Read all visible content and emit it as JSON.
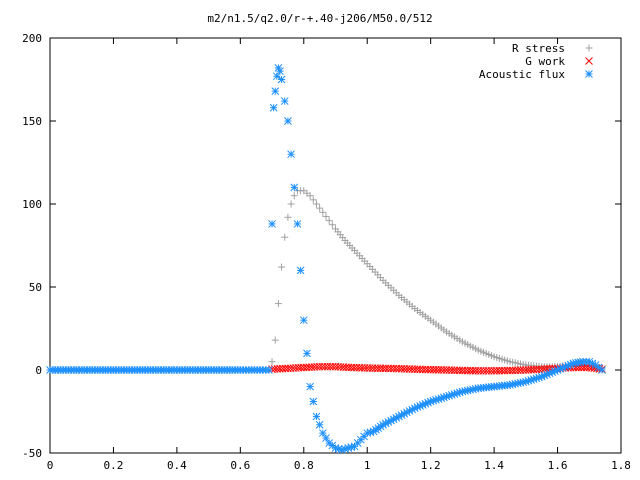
{
  "chart_data": {
    "type": "scatter",
    "title": "m2/n1.5/q2.0/r-+.40-j206/M50.0/512",
    "xlabel": "",
    "ylabel": "",
    "xlim": [
      0,
      1.8
    ],
    "ylim": [
      -50,
      200
    ],
    "grid": false,
    "legend_position": "top-right",
    "x_ticks": [
      "0",
      "0.2",
      "0.4",
      "0.6",
      "0.8",
      "1",
      "1.2",
      "1.4",
      "1.6",
      "1.8"
    ],
    "y_ticks": [
      "-50",
      "0",
      "50",
      "100",
      "150",
      "200"
    ],
    "series": [
      {
        "name": "R stress",
        "marker": "plus",
        "color": "#a0a0a0",
        "x": [
          0.7,
          0.71,
          0.72,
          0.73,
          0.74,
          0.75,
          0.76,
          0.77,
          0.78,
          0.8,
          0.82,
          0.84,
          0.86,
          0.88,
          0.9,
          0.93,
          0.96,
          1.0,
          1.05,
          1.1,
          1.15,
          1.2,
          1.25,
          1.3,
          1.35,
          1.4,
          1.45,
          1.5,
          1.55,
          1.6,
          1.65,
          1.7,
          1.74
        ],
        "y": [
          5,
          18,
          40,
          62,
          80,
          92,
          100,
          105,
          108,
          108,
          105,
          100,
          95,
          90,
          85,
          78,
          72,
          64,
          54,
          45,
          37,
          30,
          23,
          17,
          12,
          8,
          5,
          3,
          2,
          2,
          3,
          3,
          1
        ]
      },
      {
        "name": "G work",
        "marker": "cross",
        "color": "#ff0000",
        "x": [
          0.7,
          0.75,
          0.8,
          0.85,
          0.9,
          0.95,
          1.0,
          1.05,
          1.1,
          1.15,
          1.2,
          1.25,
          1.3,
          1.35,
          1.4,
          1.45,
          1.5,
          1.55,
          1.6,
          1.65,
          1.7,
          1.74
        ],
        "y": [
          0.5,
          1,
          1.5,
          2,
          2,
          1.5,
          1.2,
          1,
          0.8,
          0.5,
          0.2,
          0,
          -0.3,
          -0.5,
          -0.5,
          -0.3,
          0,
          0.5,
          1,
          1.5,
          1.5,
          0.5
        ]
      },
      {
        "name": "Acoustic flux",
        "marker": "star",
        "color": "#1e90ff",
        "x": [
          0.0,
          0.1,
          0.2,
          0.3,
          0.4,
          0.5,
          0.6,
          0.68,
          0.69,
          0.7,
          0.705,
          0.71,
          0.715,
          0.72,
          0.725,
          0.73,
          0.74,
          0.75,
          0.76,
          0.77,
          0.78,
          0.79,
          0.8,
          0.82,
          0.84,
          0.86,
          0.88,
          0.9,
          0.92,
          0.94,
          0.96,
          0.98,
          1.0,
          1.02,
          1.05,
          1.1,
          1.15,
          1.2,
          1.25,
          1.3,
          1.35,
          1.4,
          1.45,
          1.5,
          1.55,
          1.6,
          1.65,
          1.68,
          1.7,
          1.72,
          1.74
        ],
        "y": [
          0,
          0,
          0,
          0,
          0,
          0,
          0,
          0,
          0,
          88,
          158,
          168,
          177,
          182,
          180,
          175,
          162,
          150,
          130,
          110,
          88,
          60,
          30,
          -10,
          -28,
          -38,
          -44,
          -47,
          -48,
          -47,
          -46,
          -42,
          -38,
          -37,
          -33,
          -28,
          -23,
          -19,
          -16,
          -13,
          -11,
          -10,
          -9,
          -7,
          -4,
          0,
          4,
          5,
          5,
          3,
          0
        ]
      }
    ]
  }
}
